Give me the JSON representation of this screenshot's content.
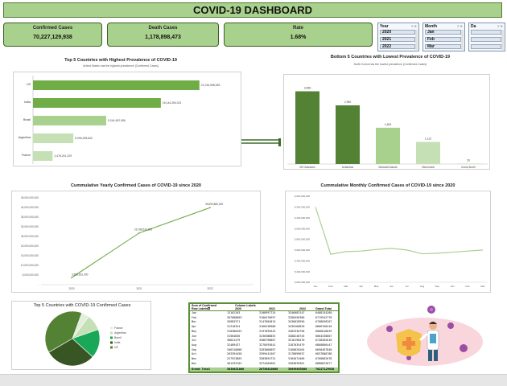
{
  "dashboard": {
    "title": "COVID-19 DASHBOARD"
  },
  "kpis": [
    {
      "label": "Confirmed Cases",
      "value": "70,227,129,938"
    },
    {
      "label": "Death Cases",
      "value": "1,178,898,473"
    },
    {
      "label": "Rate",
      "value": "1.68%"
    }
  ],
  "slicers": {
    "year": {
      "title": "Year",
      "items": [
        "2020",
        "2021",
        "2022"
      ]
    },
    "month": {
      "title": "Month",
      "items": [
        "Jan",
        "Feb",
        "Mar"
      ]
    },
    "day": {
      "title": "Da",
      "items": [
        "",
        "",
        ""
      ]
    }
  },
  "colors": {
    "dark_green": "#548235",
    "mid_green": "#70ad47",
    "light_green": "#a9d18e",
    "pale_green": "#c5e0b4"
  },
  "chart_data": [
    {
      "type": "bar",
      "orientation": "horizontal",
      "title": "Top 5 Countries with Highest Prevalence of COVID-19",
      "subtitle": "United States has the highest prevalence (Confirmed Cases)",
      "categories": [
        "US",
        "India",
        "Brazil",
        "Argentina",
        "France"
      ],
      "values": [
        21016058053,
        16144284021,
        9244492086,
        5096295840,
        2476241229
      ],
      "labels": [
        "21,016,058,053",
        "16,144,284,021",
        "9,244,492,086",
        "5,096,295,840",
        "2,476,241,229"
      ],
      "xlim": [
        0,
        25000000000
      ]
    },
    {
      "type": "bar",
      "title": "Bottom 5 Countries with Lowest Prevalence of COVID-19",
      "subtitle": "North Korea has the lowest prevalence (Confirmed Cases)",
      "categories": [
        "MS Zaandam",
        "Antarctica",
        "Marshall Islands",
        "Micronesia",
        "Korea,North"
      ],
      "values": [
        3656,
        2950,
        1824,
        1112,
        26
      ],
      "labels": [
        "3,656",
        "2,950",
        "1,824",
        "1,112",
        "26"
      ],
      "ylim": [
        0,
        4000
      ]
    },
    {
      "type": "line",
      "title": "Cummulative Yearly Confirmed Cases of COVID-19 since 2020",
      "x": [
        "2020",
        "2021",
        "2022"
      ],
      "values": [
        3638631000,
        26788610000,
        39899885000
      ],
      "labels": [
        "3,638,631,000",
        "26,788,610,000",
        "39,899,885,000"
      ],
      "y_ticks": [
        "-",
        "5,000,000,000",
        "10,000,000,000",
        "15,000,000,000",
        "20,000,000,000",
        "25,000,000,000",
        "30,000,000,000",
        "35,000,000,000",
        "40,000,000,000",
        "45,000,000,000"
      ],
      "ylim": [
        0,
        45000000000
      ]
    },
    {
      "type": "line",
      "title": "Cummulative Monthly Confirmed Cases of COVID-19 since 2020",
      "x": [
        "Jan",
        "Feb",
        "Mar",
        "Apr",
        "May",
        "Jun",
        "Jul",
        "Aug",
        "Sep",
        "Oct",
        "Nov",
        "Dec"
      ],
      "values": [
        6400000000,
        5520000000,
        5570000000,
        5580000000,
        5610000000,
        5630000000,
        5600000000,
        5530000000,
        5540000000,
        5560000000,
        5580000000,
        5600000000
      ],
      "y_ticks": [
        "5,000,000,000",
        "5,200,000,000",
        "5,400,000,000",
        "5,600,000,000",
        "5,800,000,000",
        "6,000,000,000",
        "6,200,000,000",
        "6,400,000,000",
        "6,600,000,000"
      ],
      "ylim": [
        5000000000,
        6600000000
      ]
    },
    {
      "type": "pie",
      "title": "Top 5 Countries with COVID-19 Confirmed Cases",
      "categories": [
        "France",
        "Argentina",
        "Brazil",
        "India",
        "US"
      ],
      "values": [
        2476241229,
        5096295840,
        9244492086,
        16144284021,
        21016058053
      ],
      "legend": "right"
    }
  ],
  "table": {
    "title": "Sum of Confirmed",
    "column_field": "Column Labels",
    "row_field": "Row Labels",
    "columns": [
      "2020",
      "2021",
      "2022",
      "Grand Total"
    ],
    "rows": [
      {
        "label": "Jan",
        "values": [
          "13162203",
          "3108997724",
          "3346083147",
          "6468154260"
        ]
      },
      {
        "label": "Feb",
        "values": [
          "307088809",
          "3106470697",
          "3288456380",
          "6715942778"
        ]
      },
      {
        "label": "Mar",
        "values": [
          "20983371",
          "3147084815",
          "3438028950",
          "6708658207"
        ]
      },
      {
        "label": "Apr",
        "values": [
          "31310324",
          "3160230980",
          "3430160828",
          "6866760416"
        ]
      },
      {
        "label": "May",
        "values": [
          "310388493",
          "3197895643",
          "3483336798",
          "6066818639"
        ]
      },
      {
        "label": "Jun",
        "values": [
          "31564836",
          "3236388853",
          "3488248745",
          "6064330007"
        ]
      },
      {
        "label": "Jul",
        "values": [
          "30841479",
          "3306798867",
          "3316198470",
          "6740302616"
        ]
      },
      {
        "label": "Aug",
        "values": [
          "32489437",
          "3270593642",
          "3187035479",
          "6860886447"
        ]
      },
      {
        "label": "Sep",
        "values": [
          "346310008",
          "3283060097",
          "3160820264",
          "6690487848"
        ]
      },
      {
        "label": "Oct",
        "values": [
          "263394458",
          "3399441567",
          "3178899637",
          "6837888788"
        ]
      },
      {
        "label": "Nov",
        "values": [
          "227923865",
          "3383894731",
          "3184074460",
          "6760882678"
        ]
      },
      {
        "label": "Dec",
        "values": [
          "301293702",
          "3374403601",
          "3303839301",
          "6880822877"
        ]
      }
    ],
    "total": {
      "label": "Grand Total",
      "values": [
        "3638631000",
        "26788610000",
        "39899885000",
        "70227129938"
      ]
    }
  }
}
